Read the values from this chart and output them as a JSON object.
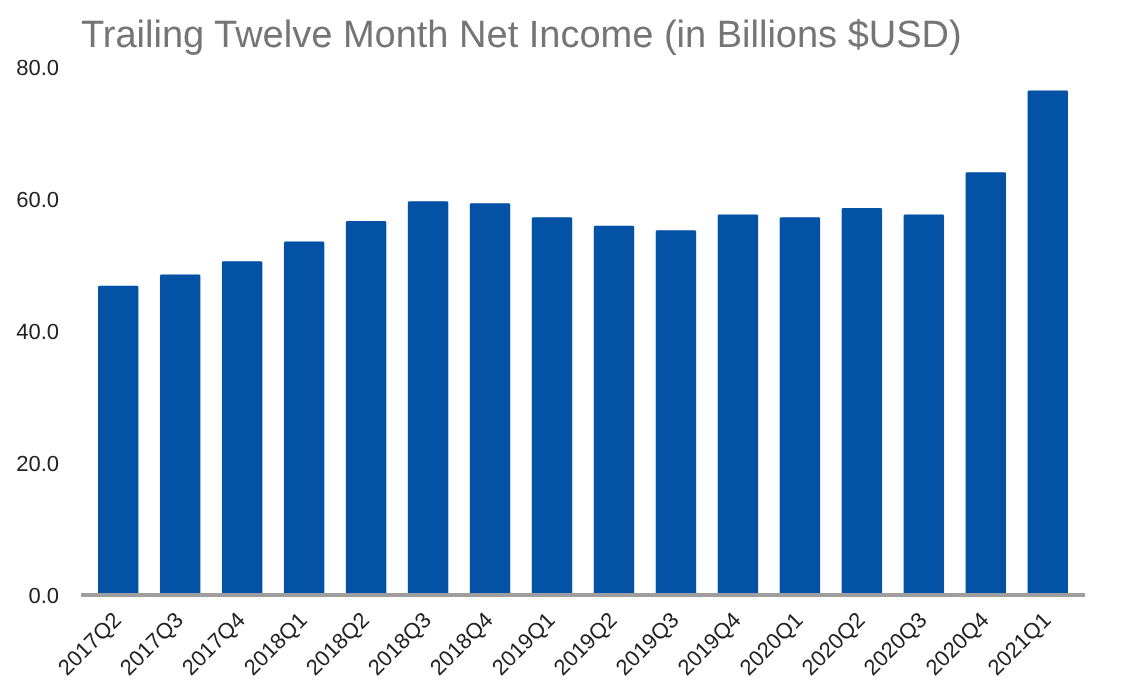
{
  "chart_data": {
    "type": "bar",
    "title": "Trailing Twelve Month Net Income (in Billions $USD)",
    "categories": [
      "2017Q2",
      "2017Q3",
      "2017Q4",
      "2018Q1",
      "2018Q2",
      "2018Q3",
      "2018Q4",
      "2019Q1",
      "2019Q2",
      "2019Q3",
      "2019Q4",
      "2020Q1",
      "2020Q2",
      "2020Q3",
      "2020Q4",
      "2021Q1"
    ],
    "values": [
      46.7,
      48.4,
      50.4,
      53.4,
      56.5,
      59.5,
      59.2,
      57.1,
      55.8,
      55.1,
      57.5,
      57.1,
      58.5,
      57.5,
      63.9,
      76.3
    ],
    "color": "#0352a6",
    "ylim": [
      0,
      80
    ],
    "yticks": [
      {
        "value": 0,
        "label": "0.0"
      },
      {
        "value": 20,
        "label": "20.0"
      },
      {
        "value": 40,
        "label": "40.0"
      },
      {
        "value": 60,
        "label": "60.0"
      },
      {
        "value": 80,
        "label": "80.0"
      }
    ],
    "grid": false
  }
}
